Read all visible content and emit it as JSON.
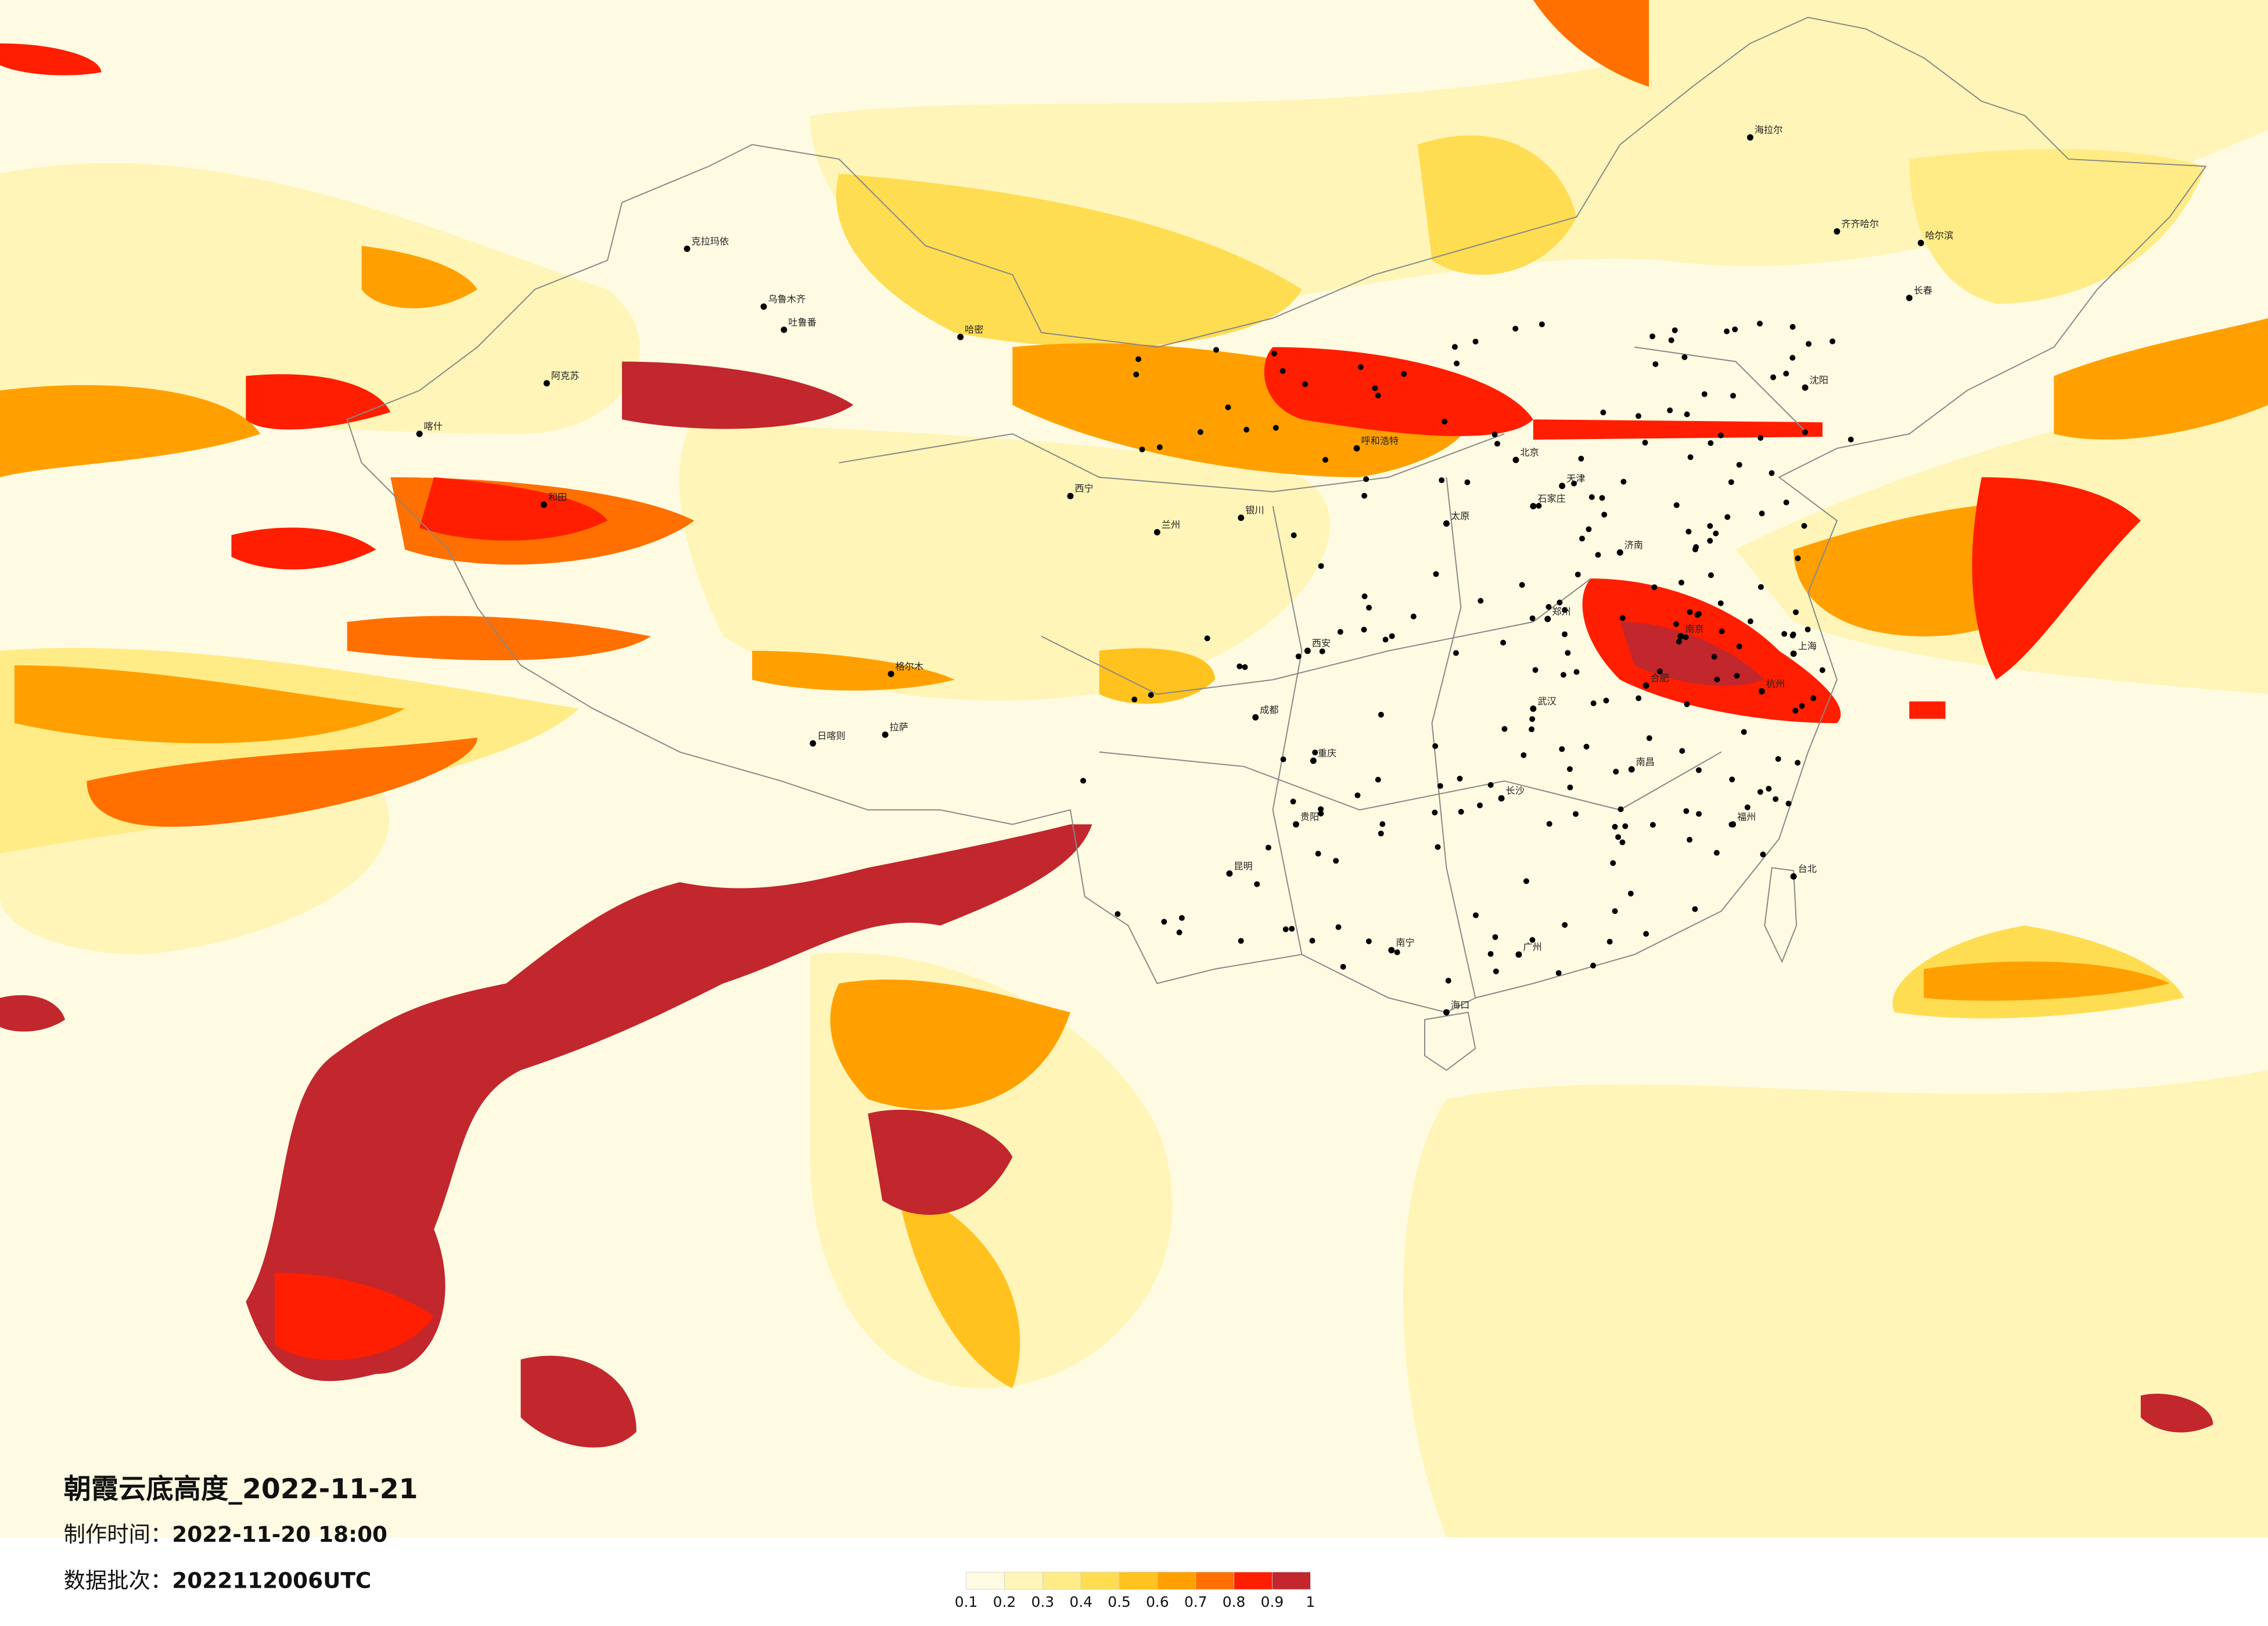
{
  "title": "朝霞云底高度_2022-11-21",
  "production_time": {
    "label": "制作时间：",
    "value": "2022-11-20 18:00"
  },
  "batch": {
    "label": "数据批次：",
    "value": "2022112006UTC"
  },
  "legend": {
    "ticks": [
      0.1,
      0.2,
      0.3,
      0.4,
      0.5,
      0.6,
      0.7,
      0.8,
      0.9,
      1
    ],
    "colors": [
      "#fffbe3",
      "#fff5b8",
      "#ffec86",
      "#ffdd52",
      "#ffc21e",
      "#ffa000",
      "#ff7000",
      "#ff1e00",
      "#c1272d"
    ]
  },
  "cities": [
    "克拉玛依",
    "乌鲁木齐",
    "吐鲁番",
    "喀什",
    "阿克苏",
    "和田",
    "哈密",
    "格尔木",
    "拉萨",
    "日喀则",
    "西宁",
    "兰州",
    "银川",
    "呼和浩特",
    "北京",
    "天津",
    "石家庄",
    "太原",
    "济南",
    "郑州",
    "西安",
    "成都",
    "重庆",
    "贵阳",
    "昆明",
    "南宁",
    "广州",
    "长沙",
    "武汉",
    "南昌",
    "合肥",
    "南京",
    "上海",
    "杭州",
    "福州",
    "沈阳",
    "长春",
    "哈尔滨",
    "齐齐哈尔",
    "海拉尔",
    "海口",
    "台北"
  ]
}
